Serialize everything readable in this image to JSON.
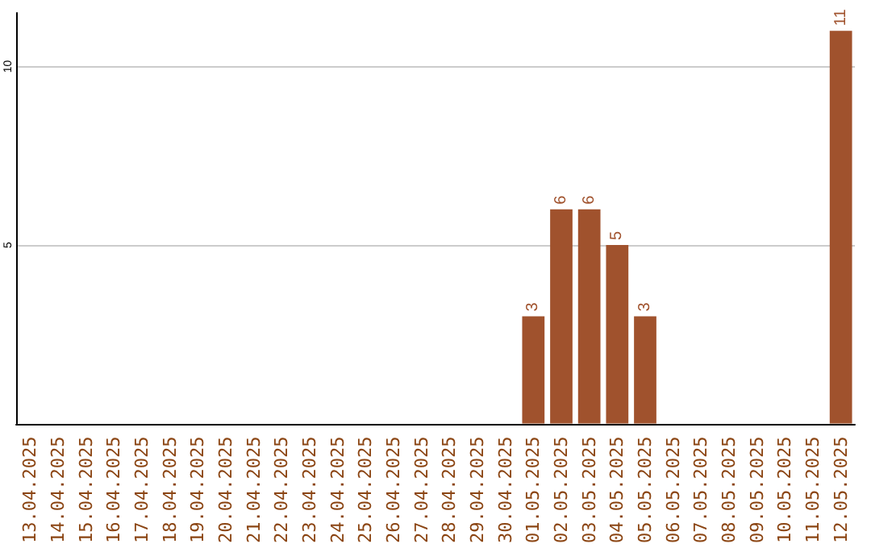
{
  "chart_data": {
    "type": "bar",
    "categories": [
      "13.04.2025",
      "14.04.2025",
      "15.04.2025",
      "16.04.2025",
      "17.04.2025",
      "18.04.2025",
      "19.04.2025",
      "20.04.2025",
      "21.04.2025",
      "22.04.2025",
      "23.04.2025",
      "24.04.2025",
      "25.04.2025",
      "26.04.2025",
      "27.04.2025",
      "28.04.2025",
      "29.04.2025",
      "30.04.2025",
      "01.05.2025",
      "02.05.2025",
      "03.05.2025",
      "04.05.2025",
      "05.05.2025",
      "06.05.2025",
      "07.05.2025",
      "08.05.2025",
      "09.05.2025",
      "10.05.2025",
      "11.05.2025",
      "12.05.2025"
    ],
    "values": [
      0,
      0,
      0,
      0,
      0,
      0,
      0,
      0,
      0,
      0,
      0,
      0,
      0,
      0,
      0,
      0,
      0,
      0,
      3,
      6,
      6,
      5,
      3,
      0,
      0,
      0,
      0,
      0,
      0,
      11
    ],
    "value_labels": [
      null,
      null,
      null,
      null,
      null,
      null,
      null,
      null,
      null,
      null,
      null,
      null,
      null,
      null,
      null,
      null,
      null,
      null,
      "3",
      "6",
      "6",
      "5",
      "3",
      null,
      null,
      null,
      null,
      null,
      null,
      "11"
    ],
    "color": "#a0522d",
    "ylim": [
      0,
      11.5
    ],
    "yticks": [
      5,
      10
    ],
    "grid": "y"
  }
}
